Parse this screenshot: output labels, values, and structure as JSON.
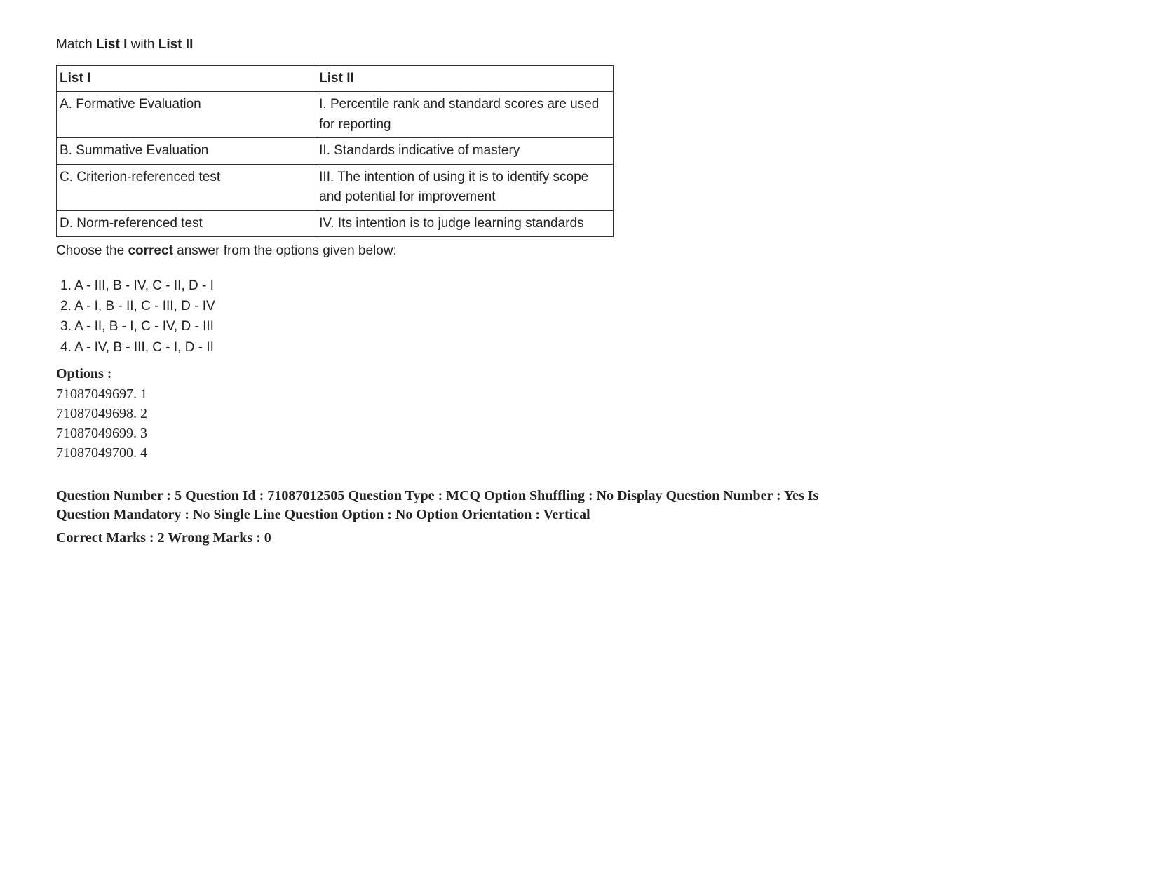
{
  "instruction": {
    "prefix": "Match ",
    "b1": "List I",
    "mid": " with ",
    "b2": "List II"
  },
  "table": {
    "headers": {
      "col1": "List I",
      "col2": "List II"
    },
    "rows": [
      {
        "col1": "A. Formative Evaluation",
        "col2": "I. Percentile rank and standard scores are used for reporting"
      },
      {
        "col1": "B. Summative Evaluation",
        "col2": "II. Standards indicative of mastery"
      },
      {
        "col1": "C. Criterion-referenced test",
        "col2": "III. The intention of using it is to identify scope and potential for improvement"
      },
      {
        "col1": "D. Norm-referenced test",
        "col2": "IV. Its intention is to judge learning standards"
      }
    ]
  },
  "choose": {
    "pre": "Choose the ",
    "bold": "correct",
    "post": " answer from the options given below:"
  },
  "answers": [
    "1. A - III, B - IV, C - II, D - I",
    "2. A - I, B - II, C - III, D - IV",
    "3. A - II, B - I, C - IV, D - III",
    "4. A - IV, B - III,  C - I, D - II"
  ],
  "options_heading": "Options :",
  "options": [
    "71087049697. 1",
    "71087049698. 2",
    "71087049699. 3",
    "71087049700. 4"
  ],
  "meta": "Question Number : 5 Question Id : 71087012505 Question Type : MCQ Option Shuffling : No Display Question Number : Yes Is Question Mandatory : No Single Line Question Option : No Option Orientation : Vertical",
  "marks": "Correct Marks : 2 Wrong Marks : 0"
}
